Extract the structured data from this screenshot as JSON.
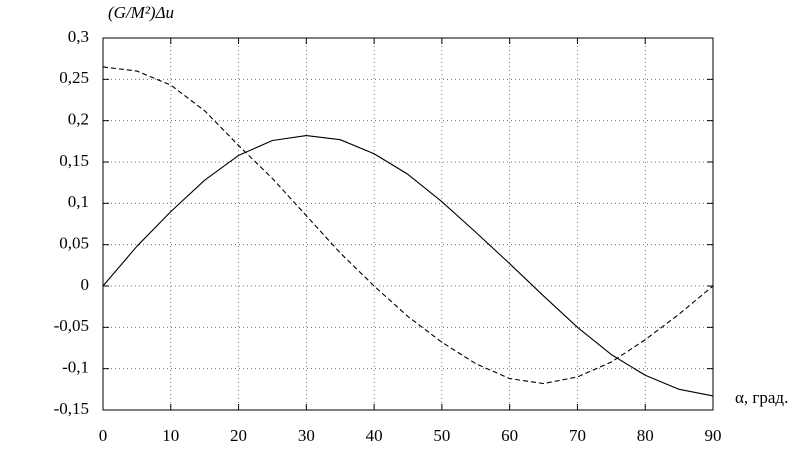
{
  "chart_data": {
    "type": "line",
    "ylabel": "(G/M²)Δu",
    "xlabel": "α, град.",
    "x": [
      0,
      5,
      10,
      15,
      20,
      25,
      30,
      35,
      40,
      45,
      50,
      55,
      60,
      65,
      70,
      75,
      80,
      85,
      90
    ],
    "series": [
      {
        "color": "#000000",
        "style": "solid",
        "values": [
          0,
          0.048,
          0.09,
          0.128,
          0.158,
          0.176,
          0.182,
          0.177,
          0.16,
          0.135,
          0.102,
          0.065,
          0.027,
          -0.012,
          -0.05,
          -0.083,
          -0.108,
          -0.125,
          -0.133
        ]
      },
      {
        "color": "#000000",
        "style": "dashed",
        "values": [
          0.265,
          0.26,
          0.243,
          0.212,
          0.17,
          0.13,
          0.085,
          0.04,
          0,
          -0.037,
          -0.068,
          -0.094,
          -0.112,
          -0.118,
          -0.11,
          -0.092,
          -0.065,
          -0.034,
          0
        ]
      }
    ],
    "xlim": [
      0,
      90
    ],
    "ylim": [
      -0.15,
      0.3
    ],
    "xticks": [
      0,
      10,
      20,
      30,
      40,
      50,
      60,
      70,
      80,
      90
    ],
    "yticks": [
      {
        "value": -0.15,
        "label": "-0,15"
      },
      {
        "value": -0.1,
        "label": "-0,1"
      },
      {
        "value": -0.05,
        "label": "-0,05"
      },
      0,
      {
        "value": 0.05,
        "label": "0,05"
      },
      {
        "value": 0.1,
        "label": "0,1"
      },
      {
        "value": 0.15,
        "label": "0,15"
      },
      {
        "value": 0.2,
        "label": "0,2"
      },
      {
        "value": 0.25,
        "label": "0,25"
      },
      {
        "value": 0.3,
        "label": "0,3"
      }
    ],
    "grid": true
  }
}
